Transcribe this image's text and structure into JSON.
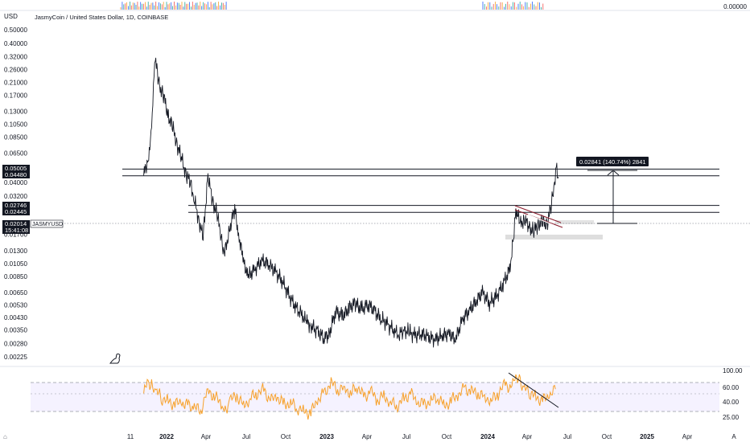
{
  "header": {
    "currency": "USD",
    "title": "JasmyCoin / United States Dollar, 1D, COINBASE",
    "top_pane_value": "0.00000"
  },
  "price_tags": {
    "upper": [
      "0.05005",
      "0.04480"
    ],
    "middle": [
      "0.02746",
      "0.02445"
    ],
    "current_price": "0.02014",
    "current_symbol": "JASMYUSD",
    "current_time": "15:41:08",
    "measure_label": "0.02841 (140.74%) 2841"
  },
  "chart_data": [
    {
      "type": "line",
      "title": "JasmyCoin / United States Dollar, 1D, COINBASE",
      "y_scale": "log",
      "y_ticks": [
        "0.50000",
        "0.40000",
        "0.32000",
        "0.26000",
        "0.21000",
        "0.17000",
        "0.13000",
        "0.10500",
        "0.08500",
        "0.06500",
        "0.04000",
        "0.03200",
        "0.01700",
        "0.01300",
        "0.01050",
        "0.00850",
        "0.00650",
        "0.00530",
        "0.00430",
        "0.00350",
        "0.00280",
        "0.00225"
      ],
      "x_ticks": [
        "11",
        "2022",
        "Apr",
        "Jul",
        "Oct",
        "2023",
        "Apr",
        "Jul",
        "Oct",
        "2024",
        "Apr",
        "Jul",
        "Oct",
        "2025",
        "Apr",
        "A"
      ],
      "horizontal_levels": [
        0.05005,
        0.0448,
        0.02746,
        0.02445
      ],
      "series": [
        {
          "x": [
            "2021-11-10",
            "2021-11-20",
            "2021-11-28",
            "2021-12-05",
            "2021-12-15",
            "2021-12-25",
            "2022-01-05",
            "2022-01-15",
            "2022-01-25",
            "2022-02-05",
            "2022-02-15",
            "2022-02-25",
            "2022-03-05",
            "2022-03-15",
            "2022-03-25",
            "2022-04-05",
            "2022-04-15",
            "2022-04-25",
            "2022-05-05",
            "2022-05-12",
            "2022-05-25",
            "2022-06-05",
            "2022-06-15",
            "2022-06-25",
            "2022-07-05",
            "2022-07-20",
            "2022-08-05",
            "2022-08-20",
            "2022-09-05",
            "2022-09-20",
            "2022-10-05",
            "2022-10-20",
            "2022-11-05",
            "2022-11-15",
            "2022-11-25",
            "2022-12-10",
            "2022-12-25",
            "2023-01-05",
            "2023-01-20",
            "2023-02-05",
            "2023-02-20",
            "2023-03-05",
            "2023-03-20",
            "2023-04-05",
            "2023-04-20",
            "2023-05-05",
            "2023-05-20",
            "2023-06-05",
            "2023-06-12",
            "2023-06-25",
            "2023-07-05",
            "2023-07-20",
            "2023-08-05",
            "2023-08-20",
            "2023-09-05",
            "2023-09-20",
            "2023-10-05",
            "2023-10-20",
            "2023-11-05",
            "2023-11-20",
            "2023-12-05",
            "2023-12-20",
            "2024-01-05",
            "2024-01-20",
            "2024-02-05",
            "2024-02-20",
            "2024-03-01",
            "2024-03-05",
            "2024-03-15",
            "2024-03-25",
            "2024-04-05",
            "2024-04-15",
            "2024-04-25",
            "2024-05-05",
            "2024-05-15",
            "2024-05-25",
            "2024-06-01",
            "2024-06-05",
            "2024-06-10"
          ],
          "y": [
            0.045,
            0.06,
            0.09,
            0.33,
            0.2,
            0.17,
            0.12,
            0.1,
            0.075,
            0.058,
            0.045,
            0.04,
            0.03,
            0.022,
            0.016,
            0.045,
            0.03,
            0.024,
            0.017,
            0.012,
            0.019,
            0.026,
            0.016,
            0.011,
            0.0085,
            0.0095,
            0.011,
            0.0105,
            0.0092,
            0.008,
            0.0063,
            0.0052,
            0.0045,
            0.004,
            0.0038,
            0.0034,
            0.0031,
            0.0032,
            0.0048,
            0.0044,
            0.005,
            0.0055,
            0.0049,
            0.0054,
            0.0047,
            0.0042,
            0.0038,
            0.0034,
            0.0032,
            0.0035,
            0.0034,
            0.0032,
            0.0033,
            0.0031,
            0.003,
            0.0032,
            0.0033,
            0.003,
            0.0042,
            0.0048,
            0.0056,
            0.0065,
            0.0055,
            0.006,
            0.0075,
            0.0095,
            0.017,
            0.026,
            0.02,
            0.022,
            0.019,
            0.018,
            0.02,
            0.021,
            0.02,
            0.028,
            0.04,
            0.052,
            0.044
          ]
        }
      ]
    },
    {
      "type": "line",
      "title": "",
      "y_ticks": [
        "100.00",
        "60.00",
        "40.00",
        "25.00"
      ],
      "series": [
        {
          "x": [
            "2021-11-10",
            "2021-11-20",
            "2021-11-28",
            "2021-12-10",
            "2021-12-20",
            "2022-01-05",
            "2022-01-20",
            "2022-02-05",
            "2022-02-20",
            "2022-03-05",
            "2022-03-20",
            "2022-04-05",
            "2022-04-20",
            "2022-05-05",
            "2022-05-12",
            "2022-05-25",
            "2022-06-10",
            "2022-06-25",
            "2022-07-10",
            "2022-07-25",
            "2022-08-10",
            "2022-08-25",
            "2022-09-10",
            "2022-09-25",
            "2022-10-10",
            "2022-10-25",
            "2022-11-10",
            "2022-11-25",
            "2022-12-10",
            "2022-12-25",
            "2023-01-10",
            "2023-01-25",
            "2023-02-10",
            "2023-02-25",
            "2023-03-10",
            "2023-03-25",
            "2023-04-10",
            "2023-04-25",
            "2023-05-10",
            "2023-05-25",
            "2023-06-10",
            "2023-06-25",
            "2023-07-10",
            "2023-07-25",
            "2023-08-10",
            "2023-08-25",
            "2023-09-10",
            "2023-09-25",
            "2023-10-10",
            "2023-10-25",
            "2023-11-10",
            "2023-11-25",
            "2023-12-10",
            "2023-12-25",
            "2024-01-10",
            "2024-01-25",
            "2024-02-10",
            "2024-02-25",
            "2024-03-05",
            "2024-03-15",
            "2024-03-25",
            "2024-04-05",
            "2024-04-20",
            "2024-05-05",
            "2024-05-20",
            "2024-06-01",
            "2024-06-05"
          ],
          "y": [
            55,
            72,
            65,
            58,
            48,
            44,
            40,
            42,
            38,
            35,
            32,
            60,
            50,
            42,
            28,
            45,
            52,
            38,
            48,
            55,
            60,
            45,
            50,
            40,
            42,
            35,
            30,
            28,
            45,
            55,
            70,
            60,
            62,
            55,
            65,
            50,
            58,
            45,
            52,
            42,
            38,
            48,
            55,
            42,
            40,
            45,
            50,
            38,
            45,
            52,
            62,
            58,
            55,
            50,
            45,
            55,
            68,
            62,
            80,
            70,
            62,
            55,
            50,
            45,
            52,
            60,
            58
          ]
        }
      ]
    }
  ]
}
